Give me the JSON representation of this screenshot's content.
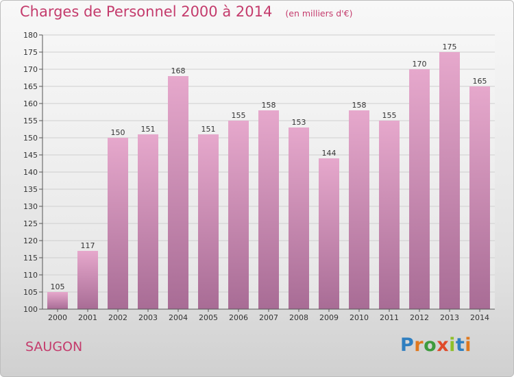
{
  "header": {
    "title": "Charges de Personnel 2000 à 2014",
    "unit": "(en milliers d'€)"
  },
  "footer": {
    "commune": "SAUGON",
    "logo": "Proxiti"
  },
  "colors": {
    "title": "#c43b6c",
    "bar_top": "#e6a8cc",
    "bar_bottom": "#a86c95"
  },
  "chart_data": {
    "type": "bar",
    "categories": [
      "2000",
      "2001",
      "2002",
      "2003",
      "2004",
      "2005",
      "2006",
      "2007",
      "2008",
      "2009",
      "2010",
      "2011",
      "2012",
      "2013",
      "2014"
    ],
    "values": [
      105,
      117,
      150,
      151,
      168,
      151,
      155,
      158,
      153,
      144,
      158,
      155,
      170,
      175,
      165
    ],
    "ylim": [
      100,
      180
    ],
    "yticks": [
      100,
      105,
      110,
      115,
      120,
      125,
      130,
      135,
      140,
      145,
      150,
      155,
      160,
      165,
      170,
      175,
      180
    ],
    "grid": true
  }
}
